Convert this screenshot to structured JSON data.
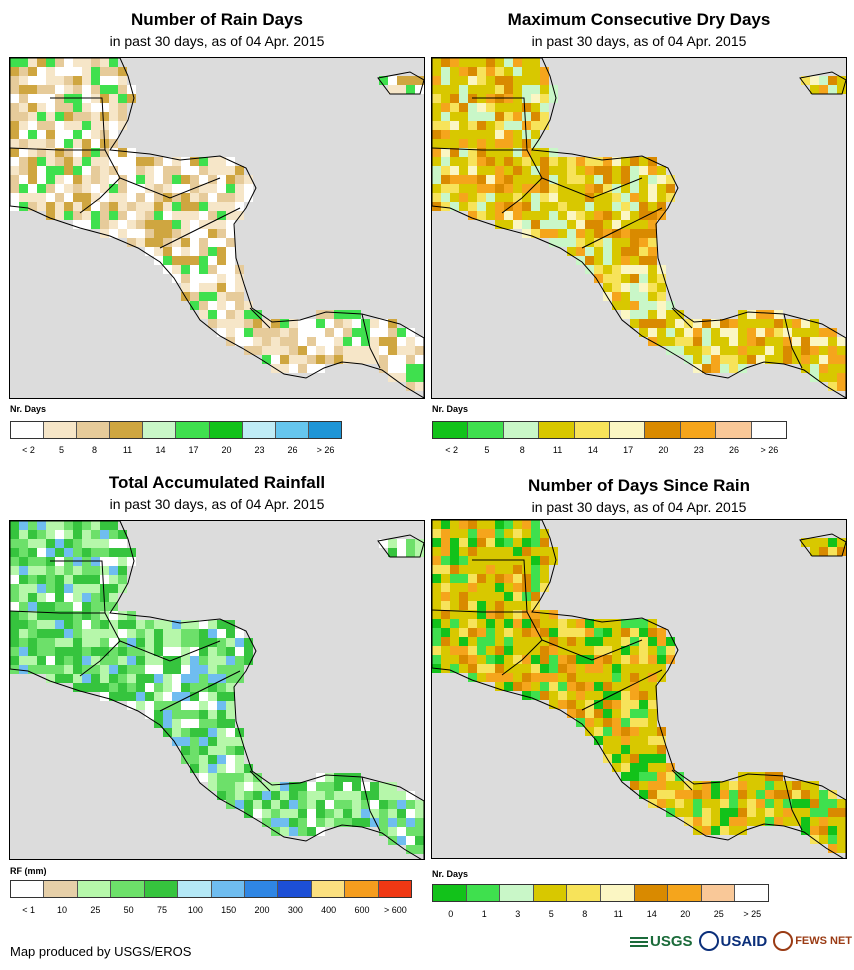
{
  "panels": [
    {
      "id": "rain-days",
      "title": "Number of Rain Days",
      "subtitle": "in past 30 days, as of 04 Apr. 2015",
      "unit": "Nr. Days",
      "legend_colors": [
        "#ffffff",
        "#f6e6c8",
        "#e6cb9a",
        "#cfa640",
        "#c9f7c8",
        "#3fe04e",
        "#12c21a",
        "#c0ecf6",
        "#66c6ee",
        "#1e95d6"
      ],
      "legend_ticks": [
        "< 2",
        "5",
        "8",
        "11",
        "14",
        "17",
        "20",
        "23",
        "26",
        "> 26"
      ],
      "palette": [
        "#f6e6c8",
        "#e6cb9a",
        "#ffffff",
        "#cfa640",
        "#f6e6c8",
        "#ffffff",
        "#e6cb9a",
        "#3fe04e"
      ]
    },
    {
      "id": "max-dry-days",
      "title": "Maximum Consecutive Dry Days",
      "subtitle": "in past 30 days, as of 04 Apr. 2015",
      "unit": "Nr. Days",
      "legend_colors": [
        "#12c21a",
        "#3fe04e",
        "#c9f7c8",
        "#d8c800",
        "#f7e35a",
        "#fbf6c3",
        "#d98a00",
        "#f5a51c",
        "#f9c898",
        "#ffffff"
      ],
      "legend_ticks": [
        "< 2",
        "5",
        "8",
        "11",
        "14",
        "17",
        "20",
        "23",
        "26",
        "> 26"
      ],
      "palette": [
        "#d8c800",
        "#d8c800",
        "#f7e35a",
        "#d8c800",
        "#c9f7c8",
        "#f5a51c",
        "#d98a00",
        "#fbf6c3"
      ]
    },
    {
      "id": "total-rainfall",
      "title": "Total Accumulated Rainfall",
      "subtitle": "in past 30 days, as of 04 Apr. 2015",
      "unit": "RF (mm)",
      "legend_colors": [
        "#ffffff",
        "#e6cfa8",
        "#b6f7aa",
        "#6de06a",
        "#36c43e",
        "#b4e8f6",
        "#6fbdf0",
        "#2f86e4",
        "#1c4fd6",
        "#fbe080",
        "#f59d1e",
        "#f03814"
      ],
      "legend_ticks": [
        "< 1",
        "10",
        "25",
        "50",
        "75",
        "100",
        "150",
        "200",
        "300",
        "400",
        "600",
        "> 600"
      ],
      "palette": [
        "#b6f7aa",
        "#6de06a",
        "#36c43e",
        "#6de06a",
        "#b6f7aa",
        "#6fbdf0",
        "#ffffff",
        "#36c43e"
      ]
    },
    {
      "id": "days-since-rain",
      "title": "Number of Days Since Rain",
      "subtitle": "in past 30 days, as of 04 Apr. 2015",
      "unit": "Nr. Days",
      "legend_colors": [
        "#12c21a",
        "#3fe04e",
        "#c9f7c8",
        "#d8c800",
        "#f7e35a",
        "#fbf6c3",
        "#d98a00",
        "#f5a51c",
        "#f9c898",
        "#ffffff"
      ],
      "legend_ticks": [
        "0",
        "1",
        "3",
        "5",
        "8",
        "11",
        "14",
        "20",
        "25",
        "> 25"
      ],
      "palette": [
        "#d8c800",
        "#d8c800",
        "#3fe04e",
        "#f5a51c",
        "#d8c800",
        "#12c21a",
        "#f7e35a",
        "#d98a00"
      ]
    }
  ],
  "credit": "Map produced by USGS/EROS",
  "logos": {
    "usgs": "USGS",
    "usaid": "USAID",
    "fews": "FEWS NET"
  },
  "colors": {
    "ocean": "#dcdcdc",
    "border": "#000000"
  }
}
